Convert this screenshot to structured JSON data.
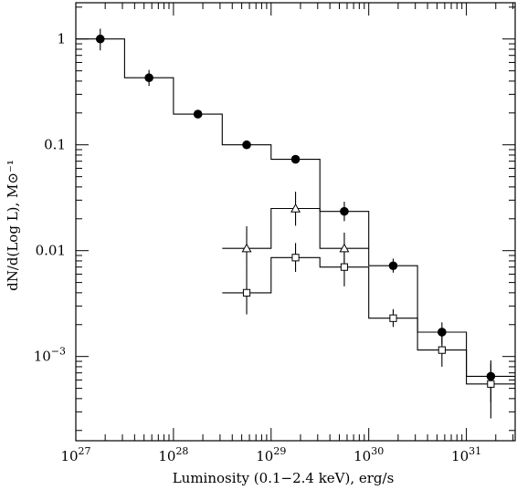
{
  "chart_data": {
    "type": "scatter",
    "title": "",
    "xlabel": "Luminosity (0.1−2.4 keV), erg/s",
    "ylabel": "dN/d(Log L), M⊙⁻¹",
    "x_scale": "log",
    "y_scale": "log",
    "xlim": [
      1e+27,
      3.16e+31
    ],
    "ylim": [
      0.00016,
      2.2
    ],
    "x_ticks": [
      {
        "value": 1e+27,
        "base": "10",
        "exp": "27"
      },
      {
        "value": 1e+28,
        "base": "10",
        "exp": "28"
      },
      {
        "value": 1e+29,
        "base": "10",
        "exp": "29"
      },
      {
        "value": 1e+30,
        "base": "10",
        "exp": "30"
      },
      {
        "value": 1e+31,
        "base": "10",
        "exp": "31"
      }
    ],
    "y_ticks": [
      {
        "value": 1,
        "label": "1"
      },
      {
        "value": 0.1,
        "label": "0.1"
      },
      {
        "value": 0.01,
        "label": "0.01"
      },
      {
        "value": 0.001,
        "base": "10",
        "exp": "−3"
      }
    ],
    "series": [
      {
        "marker": "filled-circle",
        "points": [
          {
            "x": 1.78e+27,
            "y": 1.0,
            "ylo": 0.78,
            "yhi": 1.25
          },
          {
            "x": 5.62e+27,
            "y": 0.43,
            "ylo": 0.36,
            "yhi": 0.51
          },
          {
            "x": 1.78e+28,
            "y": 0.195,
            "ylo": 0.185,
            "yhi": 0.205
          },
          {
            "x": 5.62e+28,
            "y": 0.1,
            "ylo": 0.095,
            "yhi": 0.106
          },
          {
            "x": 1.78e+29,
            "y": 0.073,
            "ylo": 0.069,
            "yhi": 0.078
          },
          {
            "x": 5.62e+29,
            "y": 0.0235,
            "ylo": 0.019,
            "yhi": 0.029
          },
          {
            "x": 1.78e+30,
            "y": 0.0072,
            "ylo": 0.0062,
            "yhi": 0.0084
          },
          {
            "x": 5.62e+30,
            "y": 0.0017,
            "ylo": 0.0013,
            "yhi": 0.0021
          },
          {
            "x": 1.78e+31,
            "y": 0.00065,
            "ylo": 0.00037,
            "yhi": 0.00092
          }
        ],
        "step": {
          "edges": [
            1e+27,
            3.16e+27,
            1e+28,
            3.16e+28,
            1e+29,
            3.16e+29,
            1e+30,
            3.16e+30,
            1e+31,
            3.16e+31
          ],
          "values": [
            1.0,
            0.43,
            0.195,
            0.1,
            0.073,
            0.0235,
            0.0072,
            0.0017,
            0.00065
          ]
        }
      },
      {
        "marker": "open-triangle",
        "points": [
          {
            "x": 5.62e+28,
            "y": 0.0105,
            "ylo": 0.0064,
            "yhi": 0.017
          },
          {
            "x": 1.78e+29,
            "y": 0.025,
            "ylo": 0.0172,
            "yhi": 0.036
          },
          {
            "x": 5.62e+29,
            "y": 0.0105,
            "ylo": 0.0074,
            "yhi": 0.0148
          }
        ],
        "step": {
          "edges": [
            3.16e+28,
            1e+29,
            3.16e+29,
            1e+30
          ],
          "values": [
            0.0105,
            0.025,
            0.0105
          ]
        }
      },
      {
        "marker": "open-square",
        "points": [
          {
            "x": 5.62e+28,
            "y": 0.004,
            "ylo": 0.0025,
            "yhi": 0.0065
          },
          {
            "x": 1.78e+29,
            "y": 0.0086,
            "ylo": 0.0063,
            "yhi": 0.0118
          },
          {
            "x": 5.62e+29,
            "y": 0.007,
            "ylo": 0.0046,
            "yhi": 0.0105
          },
          {
            "x": 1.78e+30,
            "y": 0.0023,
            "ylo": 0.0019,
            "yhi": 0.0028
          },
          {
            "x": 5.62e+30,
            "y": 0.00115,
            "ylo": 0.0008,
            "yhi": 0.00165
          },
          {
            "x": 1.78e+31,
            "y": 0.00055,
            "ylo": 0.00026,
            "yhi": 0.00086
          }
        ],
        "step": {
          "edges": [
            3.16e+28,
            1e+29,
            3.16e+29,
            1e+30,
            3.16e+30,
            1e+31,
            3.16e+31
          ],
          "values": [
            0.004,
            0.0086,
            0.007,
            0.0023,
            0.00115,
            0.00055
          ]
        }
      }
    ]
  }
}
